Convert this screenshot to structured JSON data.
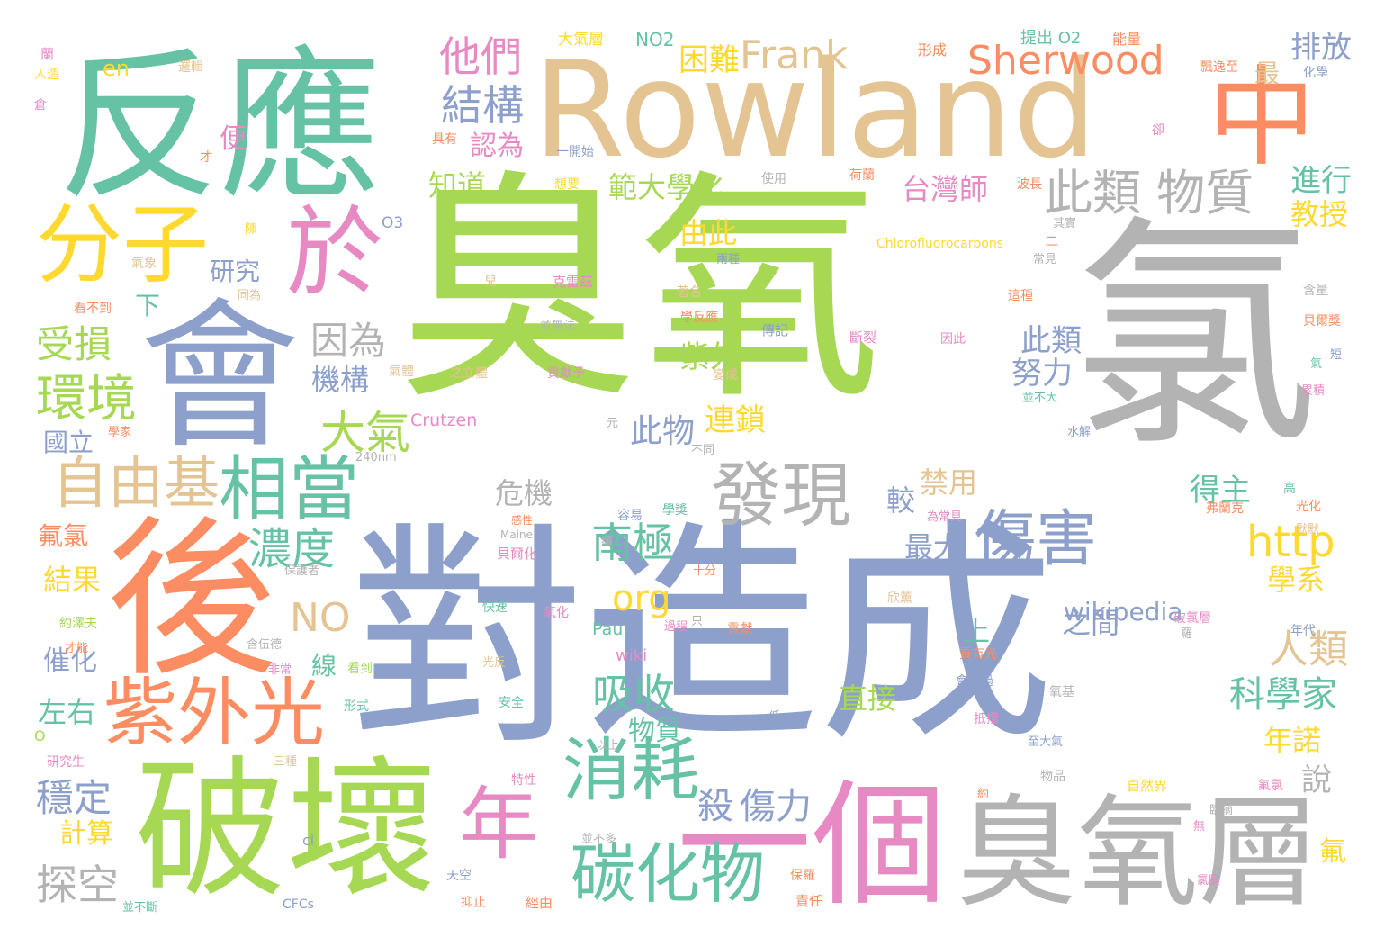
{
  "palette": {
    "green": "#a6d854",
    "blue": "#8da0cb",
    "gray": "#b3b3b3",
    "teal": "#66c2a5",
    "tan": "#e5c494",
    "orange": "#fc8d62",
    "pink": "#e78ac3",
    "yellow": "#ffd92f"
  },
  "words": [
    {
      "text": "臭氧",
      "color": "green"
    },
    {
      "text": "對",
      "color": "blue"
    },
    {
      "text": "造成",
      "color": "blue"
    },
    {
      "text": "氯",
      "color": "gray"
    },
    {
      "text": "Rowland",
      "color": "tan"
    },
    {
      "text": "反應",
      "color": "teal"
    },
    {
      "text": "會",
      "color": "blue"
    },
    {
      "text": "後",
      "color": "orange"
    },
    {
      "text": "破壞",
      "color": "green"
    },
    {
      "text": "臭氧層",
      "color": "gray"
    },
    {
      "text": "一個",
      "color": "pink"
    },
    {
      "text": "中",
      "color": "orange"
    },
    {
      "text": "分子",
      "color": "yellow"
    },
    {
      "text": "於",
      "color": "pink"
    },
    {
      "text": "相當",
      "color": "teal"
    },
    {
      "text": "自由基",
      "color": "tan"
    },
    {
      "text": "發現",
      "color": "gray"
    },
    {
      "text": "紫外光",
      "color": "orange"
    },
    {
      "text": "年",
      "color": "pink"
    },
    {
      "text": "消耗",
      "color": "teal"
    },
    {
      "text": "碳化物",
      "color": "teal"
    },
    {
      "text": "傷害",
      "color": "blue"
    },
    {
      "text": "http",
      "color": "yellow"
    },
    {
      "text": "此類 物質",
      "color": "gray"
    },
    {
      "text": "Sherwood",
      "color": "orange"
    },
    {
      "text": "Frank",
      "color": "tan"
    },
    {
      "text": "環境",
      "color": "green"
    },
    {
      "text": "他們",
      "color": "pink"
    },
    {
      "text": "結構",
      "color": "blue"
    },
    {
      "text": "濃度",
      "color": "teal"
    },
    {
      "text": "南極",
      "color": "teal"
    },
    {
      "text": "吸收",
      "color": "teal"
    },
    {
      "text": "大氣",
      "color": "green"
    },
    {
      "text": "NO",
      "color": "tan"
    },
    {
      "text": "org",
      "color": "yellow"
    },
    {
      "text": "受損",
      "color": "green"
    },
    {
      "text": "因為",
      "color": "gray"
    },
    {
      "text": "穩定",
      "color": "blue"
    },
    {
      "text": "探空",
      "color": "gray"
    },
    {
      "text": "殺",
      "color": "blue"
    },
    {
      "text": "傷力",
      "color": "blue"
    },
    {
      "text": "人類",
      "color": "tan"
    },
    {
      "text": "科學家",
      "color": "teal"
    },
    {
      "text": "範大學化",
      "color": "green"
    },
    {
      "text": "台灣師",
      "color": "pink"
    },
    {
      "text": "排放",
      "color": "blue"
    },
    {
      "text": "進行",
      "color": "teal"
    },
    {
      "text": "教授",
      "color": "yellow"
    },
    {
      "text": "困難",
      "color": "yellow"
    },
    {
      "text": "認為",
      "color": "pink"
    },
    {
      "text": "知道",
      "color": "green"
    },
    {
      "text": "由此",
      "color": "yellow"
    },
    {
      "text": "紫外",
      "color": "green"
    },
    {
      "text": "研究",
      "color": "blue"
    },
    {
      "text": "下",
      "color": "teal"
    },
    {
      "text": "便",
      "color": "pink"
    },
    {
      "text": "機構",
      "color": "blue"
    },
    {
      "text": "此類",
      "color": "blue"
    },
    {
      "text": "努力",
      "color": "blue"
    },
    {
      "text": "連鎖",
      "color": "yellow"
    },
    {
      "text": "此物",
      "color": "blue"
    },
    {
      "text": "危機",
      "color": "gray"
    },
    {
      "text": "禁用",
      "color": "tan"
    },
    {
      "text": "較",
      "color": "blue"
    },
    {
      "text": "得主",
      "color": "teal"
    },
    {
      "text": "最大",
      "color": "blue"
    },
    {
      "text": "學系",
      "color": "yellow"
    },
    {
      "text": "wikipedia",
      "color": "blue"
    },
    {
      "text": "之間",
      "color": "blue"
    },
    {
      "text": "直接",
      "color": "green"
    },
    {
      "text": "上",
      "color": "teal"
    },
    {
      "text": "線",
      "color": "teal"
    },
    {
      "text": "物質",
      "color": "teal"
    },
    {
      "text": "年諾",
      "color": "yellow"
    },
    {
      "text": "說",
      "color": "gray"
    },
    {
      "text": "氟",
      "color": "yellow"
    },
    {
      "text": "氟氯",
      "color": "orange"
    },
    {
      "text": "結果",
      "color": "yellow"
    },
    {
      "text": "國立",
      "color": "blue"
    },
    {
      "text": "催化",
      "color": "blue"
    },
    {
      "text": "左右",
      "color": "teal"
    },
    {
      "text": "計算",
      "color": "yellow"
    },
    {
      "text": "最",
      "color": "tan"
    },
    {
      "text": "en",
      "color": "yellow"
    },
    {
      "text": "NO2",
      "color": "teal"
    },
    {
      "text": "大氣層",
      "color": "yellow"
    },
    {
      "text": "提出 O2",
      "color": "teal"
    },
    {
      "text": "Crutzen",
      "color": "pink"
    },
    {
      "text": "Paul",
      "color": "teal"
    },
    {
      "text": "wiki",
      "color": "pink"
    },
    {
      "text": "O3",
      "color": "blue"
    },
    {
      "text": "Chlorofluorocarbons",
      "color": "yellow"
    },
    {
      "text": "240nm",
      "color": "gray"
    },
    {
      "text": "CFCs",
      "color": "blue"
    },
    {
      "text": "Maine",
      "color": "gray"
    },
    {
      "text": "cl",
      "color": "blue"
    },
    {
      "text": "O",
      "color": "green"
    },
    {
      "text": "形成",
      "color": "orange"
    },
    {
      "text": "能量",
      "color": "orange"
    },
    {
      "text": "化學",
      "color": "blue"
    },
    {
      "text": "飄逸至",
      "color": "orange"
    },
    {
      "text": "卻",
      "color": "pink"
    },
    {
      "text": "具有",
      "color": "orange"
    },
    {
      "text": "一開始",
      "color": "blue"
    },
    {
      "text": "想要",
      "color": "yellow"
    },
    {
      "text": "波長",
      "color": "orange"
    },
    {
      "text": "使用",
      "color": "gray"
    },
    {
      "text": "荷蘭",
      "color": "orange"
    },
    {
      "text": "其實",
      "color": "gray"
    },
    {
      "text": "常見",
      "color": "gray"
    },
    {
      "text": "兩種",
      "color": "blue"
    },
    {
      "text": "克雷茲",
      "color": "pink"
    },
    {
      "text": "並無法",
      "color": "gray"
    },
    {
      "text": "兒",
      "color": "tan"
    },
    {
      "text": "著名",
      "color": "tan"
    },
    {
      "text": "學反應",
      "color": "orange"
    },
    {
      "text": "這種",
      "color": "orange"
    },
    {
      "text": "含量",
      "color": "gray"
    },
    {
      "text": "貝爾獎",
      "color": "orange"
    },
    {
      "text": "傳記",
      "color": "blue"
    },
    {
      "text": "斷裂",
      "color": "pink"
    },
    {
      "text": "因此",
      "color": "pink"
    },
    {
      "text": "短",
      "color": "blue"
    },
    {
      "text": "氣",
      "color": "teal"
    },
    {
      "text": "累積",
      "color": "pink"
    },
    {
      "text": "之立體",
      "color": "tan"
    },
    {
      "text": "氣體",
      "color": "tan"
    },
    {
      "text": "貢獻予",
      "color": "pink"
    },
    {
      "text": "變成",
      "color": "tan"
    },
    {
      "text": "並不大",
      "color": "teal"
    },
    {
      "text": "水解",
      "color": "blue"
    },
    {
      "text": "元",
      "color": "gray"
    },
    {
      "text": "不同",
      "color": "gray"
    },
    {
      "text": "學家",
      "color": "orange"
    },
    {
      "text": "高",
      "color": "teal"
    },
    {
      "text": "光化",
      "color": "orange"
    },
    {
      "text": "默默",
      "color": "tan"
    },
    {
      "text": "弗蘭克",
      "color": "orange"
    },
    {
      "text": "為常見",
      "color": "pink"
    },
    {
      "text": "容易",
      "color": "blue"
    },
    {
      "text": "學獎",
      "color": "teal"
    },
    {
      "text": "感性",
      "color": "orange"
    },
    {
      "text": "貝爾化",
      "color": "pink"
    },
    {
      "text": "十分",
      "color": "orange"
    },
    {
      "text": "續",
      "color": "gray"
    },
    {
      "text": "保護者",
      "color": "gray"
    },
    {
      "text": "欣薰",
      "color": "tan"
    },
    {
      "text": "快速",
      "color": "teal"
    },
    {
      "text": "氧化",
      "color": "pink"
    },
    {
      "text": "只",
      "color": "gray"
    },
    {
      "text": "破氯層",
      "color": "pink"
    },
    {
      "text": "羅",
      "color": "gray"
    },
    {
      "text": "年代",
      "color": "blue"
    },
    {
      "text": "約澤夫",
      "color": "green"
    },
    {
      "text": "才能",
      "color": "orange"
    },
    {
      "text": "含伍德",
      "color": "gray"
    },
    {
      "text": "過程",
      "color": "pink"
    },
    {
      "text": "貢獻",
      "color": "orange"
    },
    {
      "text": "質有光",
      "color": "orange"
    },
    {
      "text": "光反",
      "color": "tan"
    },
    {
      "text": "非常",
      "color": "pink"
    },
    {
      "text": "看到",
      "color": "green"
    },
    {
      "text": "會經過",
      "color": "blue"
    },
    {
      "text": "氧基",
      "color": "gray"
    },
    {
      "text": "形式",
      "color": "teal"
    },
    {
      "text": "安全",
      "color": "teal"
    },
    {
      "text": "抵擋",
      "color": "pink"
    },
    {
      "text": "低",
      "color": "blue"
    },
    {
      "text": "至大氣",
      "color": "blue"
    },
    {
      "text": "以上",
      "color": "gray"
    },
    {
      "text": "研究生",
      "color": "pink"
    },
    {
      "text": "三種",
      "color": "tan"
    },
    {
      "text": "物品",
      "color": "gray"
    },
    {
      "text": "特性",
      "color": "pink"
    },
    {
      "text": "自然界",
      "color": "yellow"
    },
    {
      "text": "約",
      "color": "orange"
    },
    {
      "text": "氟氯",
      "color": "pink"
    },
    {
      "text": "並不多",
      "color": "gray"
    },
    {
      "text": "無",
      "color": "pink"
    },
    {
      "text": "臨摘",
      "color": "gray"
    },
    {
      "text": "天空",
      "color": "blue"
    },
    {
      "text": "保羅",
      "color": "orange"
    },
    {
      "text": "氯膜",
      "color": "pink"
    },
    {
      "text": "並不斷",
      "color": "teal"
    },
    {
      "text": "抑止",
      "color": "orange"
    },
    {
      "text": "經由",
      "color": "orange"
    },
    {
      "text": "責任",
      "color": "orange"
    },
    {
      "text": "蘭",
      "color": "pink"
    },
    {
      "text": "人造",
      "color": "yellow"
    },
    {
      "text": "倉",
      "color": "pink"
    },
    {
      "text": "邏輯",
      "color": "tan"
    },
    {
      "text": "才",
      "color": "orange"
    },
    {
      "text": "陳",
      "color": "yellow"
    },
    {
      "text": "氣象",
      "color": "tan"
    },
    {
      "text": "看不到",
      "color": "orange"
    },
    {
      "text": "同為",
      "color": "tan"
    },
    {
      "text": "二",
      "color": "orange"
    }
  ]
}
